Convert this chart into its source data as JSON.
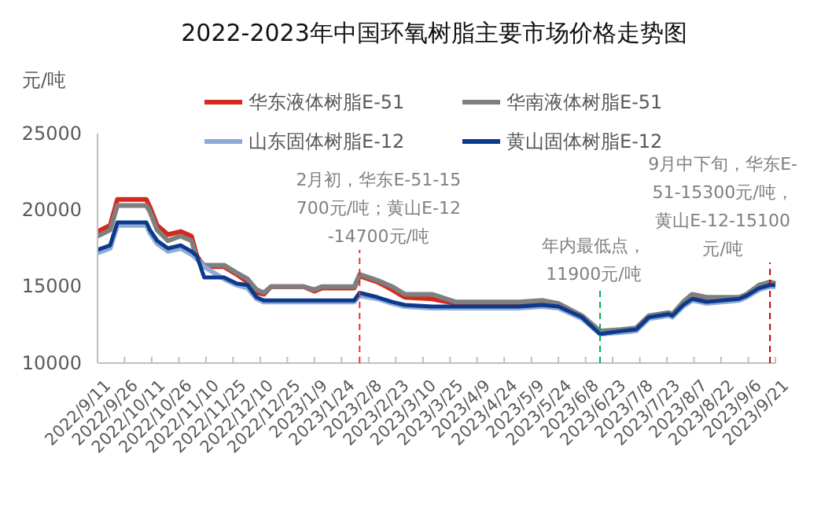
{
  "chart_data": {
    "type": "line",
    "title": "2022-2023年中国环氧树脂主要市场价格走势图",
    "ylabel": "元/吨",
    "x": [
      "2022-09-11",
      "2022-09-18",
      "2022-09-22",
      "2022-10-08",
      "2022-10-10",
      "2022-10-14",
      "2022-10-20",
      "2022-10-27",
      "2022-11-02",
      "2022-11-05",
      "2022-11-09",
      "2022-11-20",
      "2022-11-27",
      "2022-12-03",
      "2022-12-08",
      "2022-12-12",
      "2022-12-16",
      "2023-01-03",
      "2023-01-09",
      "2023-01-13",
      "2023-01-31",
      "2023-02-03",
      "2023-02-13",
      "2023-02-21",
      "2023-02-28",
      "2023-03-15",
      "2023-03-28",
      "2023-05-02",
      "2023-05-15",
      "2023-05-24",
      "2023-06-06",
      "2023-06-16",
      "2023-06-28",
      "2023-07-06",
      "2023-07-13",
      "2023-07-24",
      "2023-07-26",
      "2023-08-01",
      "2023-08-06",
      "2023-08-14",
      "2023-09-01",
      "2023-09-05",
      "2023-09-12",
      "2023-09-18",
      "2023-09-21"
    ],
    "series": [
      {
        "name": "华东液体树脂E-51",
        "color": "#d42a1e",
        "values": [
          18600,
          19000,
          20700,
          20700,
          20200,
          19000,
          18400,
          18600,
          18300,
          17000,
          16300,
          16300,
          15800,
          15300,
          14600,
          14500,
          15000,
          15000,
          14700,
          14900,
          14900,
          15700,
          15300,
          14800,
          14300,
          14200,
          13900,
          13900,
          14000,
          13800,
          13000,
          12000,
          12100,
          12200,
          13000,
          13200,
          13100,
          13800,
          14300,
          14100,
          14200,
          14400,
          15000,
          15300,
          15200
        ]
      },
      {
        "name": "华南液体树脂E-51",
        "color": "#7f7f7f",
        "values": [
          18300,
          18700,
          20300,
          20300,
          19900,
          18700,
          18000,
          18300,
          18000,
          16800,
          16400,
          16400,
          15900,
          15500,
          14800,
          14600,
          15000,
          15000,
          14800,
          15000,
          15000,
          15800,
          15400,
          15000,
          14500,
          14500,
          14000,
          14000,
          14100,
          13900,
          13100,
          12100,
          12200,
          12300,
          13100,
          13300,
          13200,
          14000,
          14500,
          14300,
          14300,
          14500,
          15100,
          15300,
          15200
        ]
      },
      {
        "name": "山东固体树脂E-12",
        "color": "#8eaad6",
        "values": [
          17200,
          17500,
          19000,
          19000,
          18500,
          17800,
          17300,
          17500,
          17100,
          16800,
          16300,
          15500,
          15100,
          14900,
          14200,
          14000,
          14000,
          14000,
          14000,
          14000,
          14000,
          14400,
          14200,
          13900,
          13700,
          13600,
          13600,
          13600,
          13700,
          13600,
          12900,
          11900,
          12000,
          12100,
          12900,
          13100,
          13000,
          13700,
          14100,
          13900,
          14100,
          14300,
          14800,
          15000,
          15000
        ]
      },
      {
        "name": "黄山固体树脂E-12",
        "color": "#0b3a8c",
        "values": [
          17400,
          17700,
          19200,
          19200,
          18700,
          18000,
          17500,
          17700,
          17300,
          17000,
          15600,
          15600,
          15200,
          15100,
          14300,
          14100,
          14100,
          14100,
          14100,
          14100,
          14100,
          14600,
          14300,
          14000,
          13800,
          13700,
          13700,
          13700,
          13800,
          13700,
          13000,
          11900,
          12100,
          12200,
          13000,
          13200,
          13100,
          13800,
          14200,
          14000,
          14200,
          14400,
          14900,
          15100,
          15100
        ]
      }
    ],
    "ylim": [
      10000,
      25000
    ],
    "yticks": [
      10000,
      15000,
      20000,
      25000
    ],
    "xlim": [
      "2022-09-11",
      "2023-09-21"
    ],
    "xticks": [
      {
        "value": "2022-09-11",
        "label": "2022/9/11"
      },
      {
        "value": "2022-09-26",
        "label": "2022/9/26"
      },
      {
        "value": "2022-10-11",
        "label": "2022/10/11"
      },
      {
        "value": "2022-10-26",
        "label": "2022/10/26"
      },
      {
        "value": "2022-11-10",
        "label": "2022/11/10"
      },
      {
        "value": "2022-11-25",
        "label": "2022/11/25"
      },
      {
        "value": "2022-12-10",
        "label": "2022/12/10"
      },
      {
        "value": "2022-12-25",
        "label": "2022/12/25"
      },
      {
        "value": "2023-01-09",
        "label": "2023/1/9"
      },
      {
        "value": "2023-01-24",
        "label": "2023/1/24"
      },
      {
        "value": "2023-02-08",
        "label": "2023/2/8"
      },
      {
        "value": "2023-02-23",
        "label": "2023/2/23"
      },
      {
        "value": "2023-03-10",
        "label": "2023/3/10"
      },
      {
        "value": "2023-03-25",
        "label": "2023/3/25"
      },
      {
        "value": "2023-04-09",
        "label": "2023/4/9"
      },
      {
        "value": "2023-04-24",
        "label": "2023/4/24"
      },
      {
        "value": "2023-05-09",
        "label": "2023/5/9"
      },
      {
        "value": "2023-05-24",
        "label": "2023/5/24"
      },
      {
        "value": "2023-06-08",
        "label": "2023/6/8"
      },
      {
        "value": "2023-06-23",
        "label": "2023/6/23"
      },
      {
        "value": "2023-07-08",
        "label": "2023/7/8"
      },
      {
        "value": "2023-07-23",
        "label": "2023/7/23"
      },
      {
        "value": "2023-08-07",
        "label": "2023/8/7"
      },
      {
        "value": "2023-08-22",
        "label": "2023/8/22"
      },
      {
        "value": "2023-09-06",
        "label": "2023/9/6"
      },
      {
        "value": "2023-09-21",
        "label": "2023/9/21"
      }
    ],
    "ref_lines": [
      {
        "axis": "x",
        "value": "2023-02-03",
        "label": "2月初，华东E-51-15700元/吨；黄山E-12-14700元/吨",
        "color": "#e03030",
        "line_style": "dashed"
      },
      {
        "axis": "x",
        "value": "2023-06-16",
        "label": "年内最低点，11900元/吨",
        "color": "#00b050",
        "line_style": "dashed"
      },
      {
        "axis": "x",
        "value": "2023-09-18",
        "label": "9月中下旬，华东E-51-15300元/吨，黄山E-12-15100元/吨",
        "color": "#c00000",
        "line_style": "dashed"
      }
    ],
    "legend": "top",
    "grid": false,
    "marker": "none",
    "line_style": "solid"
  }
}
